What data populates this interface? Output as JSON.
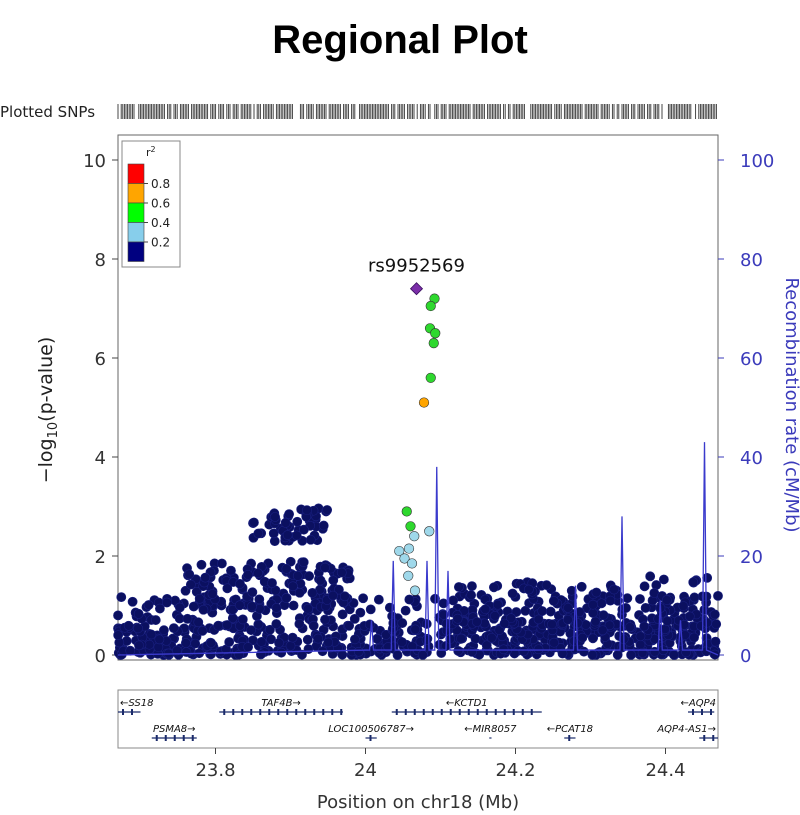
{
  "page": {
    "title": "Regional Plot"
  },
  "chart_data": {
    "type": "scatter",
    "title": "Regional Plot",
    "plotted_snps_label": "Plotted SNPs",
    "xlabel": "Position on chr18 (Mb)",
    "ylabel_left": "-log10(p-value)",
    "ylabel_left_parts": {
      "pre": "−log",
      "sub": "10",
      "post": "(p-value)"
    },
    "ylabel_right": "Recombination rate (cM/Mb)",
    "xlim": [
      23.67,
      24.47
    ],
    "ylim_left": [
      0,
      10
    ],
    "ylim_right": [
      0,
      100
    ],
    "x_ticks": [
      23.8,
      24.0,
      24.2,
      24.4
    ],
    "x_tick_labels": [
      "23.8",
      "24",
      "24.2",
      "24.4"
    ],
    "y_ticks_left": [
      0,
      2,
      4,
      6,
      8,
      10
    ],
    "y_ticks_right": [
      0,
      20,
      40,
      60,
      80,
      100
    ],
    "legend": {
      "title": "r",
      "title_sup": "2",
      "placement": "top-left",
      "bins": [
        {
          "label": "0.8",
          "color": "#ff0000"
        },
        {
          "label": "0.6",
          "color": "#ffa500"
        },
        {
          "label": "0.4",
          "color": "#00ff00"
        },
        {
          "label": "0.2",
          "color": "#87ceeb"
        },
        {
          "label": "",
          "color": "#000080"
        }
      ]
    },
    "lead_snp": {
      "label": "rs9952569",
      "x": 24.068,
      "y": 7.4,
      "color": "#7b2ea8"
    },
    "colored_snps": [
      {
        "x": 24.092,
        "y": 7.2,
        "r2": "0.4-0.6"
      },
      {
        "x": 24.087,
        "y": 7.05,
        "r2": "0.4-0.6"
      },
      {
        "x": 24.086,
        "y": 6.6,
        "r2": "0.4-0.6"
      },
      {
        "x": 24.093,
        "y": 6.5,
        "r2": "0.4-0.6"
      },
      {
        "x": 24.091,
        "y": 6.3,
        "r2": "0.4-0.6"
      },
      {
        "x": 24.087,
        "y": 5.6,
        "r2": "0.4-0.6"
      },
      {
        "x": 24.078,
        "y": 5.1,
        "r2": "0.6-0.8"
      },
      {
        "x": 24.055,
        "y": 2.9,
        "r2": "0.4-0.6"
      },
      {
        "x": 24.06,
        "y": 2.6,
        "r2": "0.4-0.6"
      },
      {
        "x": 24.085,
        "y": 2.5,
        "r2": "0.2-0.4"
      },
      {
        "x": 24.065,
        "y": 2.4,
        "r2": "0.2-0.4"
      },
      {
        "x": 24.058,
        "y": 2.15,
        "r2": "0.2-0.4"
      },
      {
        "x": 24.045,
        "y": 2.1,
        "r2": "0.2-0.4"
      },
      {
        "x": 24.052,
        "y": 1.95,
        "r2": "0.2-0.4"
      },
      {
        "x": 24.062,
        "y": 1.85,
        "r2": "0.2-0.4"
      },
      {
        "x": 24.057,
        "y": 1.6,
        "r2": "0.2-0.4"
      },
      {
        "x": 24.066,
        "y": 1.3,
        "r2": "0.2-0.4"
      }
    ],
    "background_clusters": [
      {
        "x_range": [
          23.67,
          24.47
        ],
        "y_range": [
          0,
          0.6
        ],
        "count": 520
      },
      {
        "x_range": [
          23.67,
          24.47
        ],
        "y_range": [
          0.5,
          1.2
        ],
        "count": 220
      },
      {
        "x_range": [
          23.76,
          23.98
        ],
        "y_range": [
          0.9,
          1.9
        ],
        "count": 150
      },
      {
        "x_range": [
          23.85,
          23.95
        ],
        "y_range": [
          2.3,
          3.0
        ],
        "count": 50
      },
      {
        "x_range": [
          24.1,
          24.3
        ],
        "y_range": [
          0.6,
          1.5
        ],
        "count": 90
      },
      {
        "x_range": [
          24.3,
          24.47
        ],
        "y_range": [
          0.5,
          1.6
        ],
        "count": 70
      }
    ],
    "recombination_peaks": [
      {
        "x": 24.095,
        "rate": 38
      },
      {
        "x": 24.342,
        "rate": 28
      },
      {
        "x": 24.452,
        "rate": 43
      },
      {
        "x": 24.037,
        "rate": 19
      },
      {
        "x": 24.082,
        "rate": 19
      },
      {
        "x": 24.008,
        "rate": 7
      },
      {
        "x": 24.11,
        "rate": 17
      },
      {
        "x": 24.28,
        "rate": 14
      },
      {
        "x": 24.393,
        "rate": 11
      },
      {
        "x": 24.42,
        "rate": 7
      }
    ],
    "genes": [
      {
        "name": "SS18",
        "start": 23.67,
        "end": 23.7,
        "strand": "-",
        "row": 0
      },
      {
        "name": "TAF4B",
        "start": 23.805,
        "end": 23.97,
        "strand": "+",
        "row": 0
      },
      {
        "name": "KCTD1",
        "start": 24.035,
        "end": 24.235,
        "strand": "-",
        "row": 0
      },
      {
        "name": "AQP4",
        "start": 24.43,
        "end": 24.465,
        "strand": "-",
        "row": 0
      },
      {
        "name": "PSMA8",
        "start": 23.715,
        "end": 23.775,
        "strand": "+",
        "row": 1
      },
      {
        "name": "LOC100506787",
        "start": 24.0,
        "end": 24.015,
        "strand": "+",
        "row": 1
      },
      {
        "name": "MIR8057",
        "start": 24.165,
        "end": 24.168,
        "strand": "-",
        "row": 1
      },
      {
        "name": "PCAT18",
        "start": 24.265,
        "end": 24.28,
        "strand": "-",
        "row": 1
      },
      {
        "name": "AQP4-AS1",
        "start": 24.445,
        "end": 24.47,
        "strand": "+",
        "row": 1
      }
    ]
  }
}
